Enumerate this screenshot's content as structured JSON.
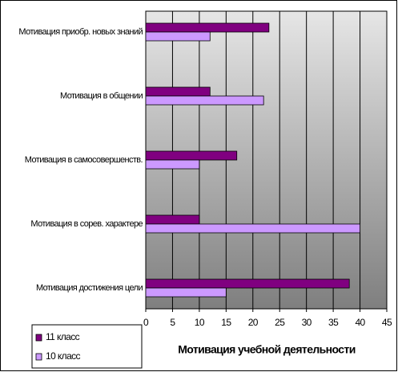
{
  "chart_data": {
    "type": "bar",
    "orientation": "horizontal",
    "categories": [
      "Мотивация приобр. новых знаний",
      "Мотивация в общении",
      "Мотивация в самосовершенств.",
      "Мотивация в сорев. характере",
      "Мотивация достижения цели"
    ],
    "series": [
      {
        "name": "11 класс",
        "color": "#800080",
        "values": [
          23,
          12,
          17,
          10,
          38
        ]
      },
      {
        "name": "10 класс",
        "color": "#cc99ff",
        "values": [
          12,
          22,
          10,
          40,
          15
        ]
      }
    ],
    "xlabel": "Мотивация учебной деятельности",
    "xlim": [
      0,
      45
    ],
    "xticks": [
      0,
      5,
      10,
      15,
      20,
      25,
      30,
      35,
      40,
      45
    ],
    "grid": true,
    "legend": "bottom-left"
  }
}
